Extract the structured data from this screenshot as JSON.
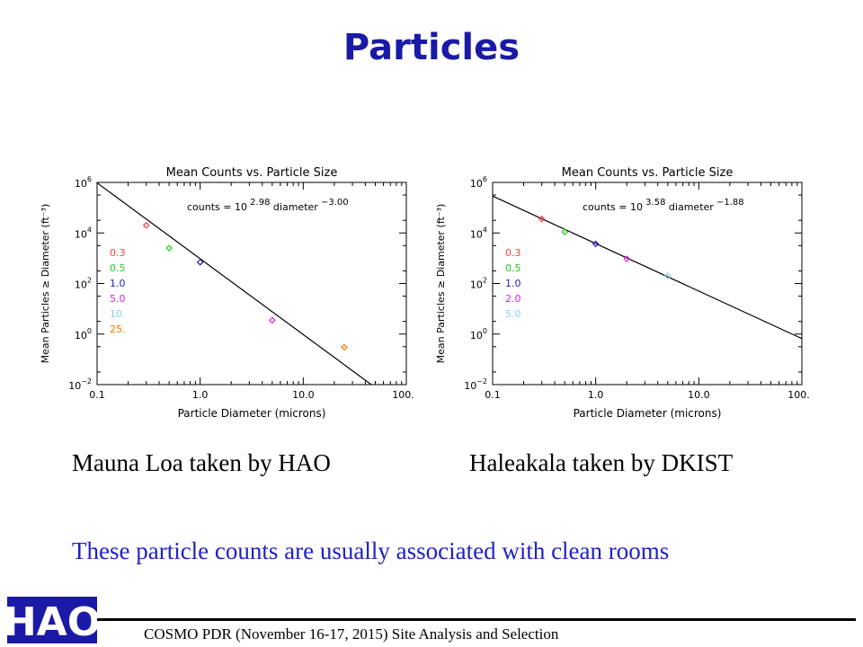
{
  "slide": {
    "title": "Particles",
    "caption_left": "Mauna Loa taken by HAO",
    "caption_right": "Haleakala taken by DKIST",
    "note": "These particle counts are usually associated with clean rooms",
    "footer": "COSMO PDR  (November 16-17, 2015) Site Analysis and Selection",
    "logo_text": "HAO"
  },
  "colors": {
    "title": "#1a1aa6",
    "note": "#1f1fc8",
    "size_0_3": "#ff4040",
    "size_0_5": "#22cc22",
    "size_1_0": "#2020c0",
    "size_5_0": "#e020e0",
    "size_2_0": "#e020e0",
    "size_10": "#88ccff",
    "size_25": "#ff7000",
    "logo_bg": "#1a1aa6",
    "logo_text": "#ffffff"
  },
  "chart_data": [
    {
      "type": "scatter",
      "title": "Mean Counts vs. Particle Size",
      "xlabel": "Particle Diameter (microns)",
      "ylabel": "Mean Particles ≥ Diameter (ft⁻³)",
      "xscale": "log",
      "yscale": "log",
      "xlim": [
        0.1,
        100.0
      ],
      "ylim": [
        0.01,
        1000000
      ],
      "x_ticks": [
        "0.1",
        "1.0",
        "10.0",
        "100.0"
      ],
      "y_ticks": [
        {
          "base": "10",
          "exp": "6"
        },
        {
          "base": "10",
          "exp": "4"
        },
        {
          "base": "10",
          "exp": "2"
        },
        {
          "base": "10",
          "exp": "0"
        },
        {
          "base": "10",
          "exp": "−2"
        }
      ],
      "fit_label": {
        "prefix": "counts = 10",
        "exp": "2.98",
        "mid": "diameter",
        "power": "−3.00"
      },
      "fit": {
        "log_coeff": 2.98,
        "power": -3.0
      },
      "legend_position": "left",
      "series": [
        {
          "name": "0.3",
          "x": 0.3,
          "y": 20000,
          "color_key": "size_0_3"
        },
        {
          "name": "0.5",
          "x": 0.5,
          "y": 2500,
          "color_key": "size_0_5"
        },
        {
          "name": "1.0",
          "x": 1.0,
          "y": 700,
          "color_key": "size_1_0"
        },
        {
          "name": "5.0",
          "x": 5.0,
          "y": 3.5,
          "color_key": "size_5_0"
        },
        {
          "name": "10.",
          "x": 10.0,
          "y": null,
          "color_key": "size_10"
        },
        {
          "name": "25.",
          "x": 25.0,
          "y": 0.3,
          "color_key": "size_25"
        }
      ]
    },
    {
      "type": "scatter",
      "title": "Mean Counts vs. Particle Size",
      "xlabel": "Particle Diameter (microns)",
      "ylabel": "Mean Particles ≥ Diameter (ft⁻³)",
      "xscale": "log",
      "yscale": "log",
      "xlim": [
        0.1,
        100.0
      ],
      "ylim": [
        0.01,
        1000000
      ],
      "x_ticks": [
        "0.1",
        "1.0",
        "10.0",
        "100.0"
      ],
      "y_ticks": [
        {
          "base": "10",
          "exp": "6"
        },
        {
          "base": "10",
          "exp": "4"
        },
        {
          "base": "10",
          "exp": "2"
        },
        {
          "base": "10",
          "exp": "0"
        },
        {
          "base": "10",
          "exp": "−2"
        }
      ],
      "fit_label": {
        "prefix": "counts = 10",
        "exp": "3.58",
        "mid": "diameter",
        "power": "−1.88"
      },
      "fit": {
        "log_coeff": 3.58,
        "power": -1.88
      },
      "legend_position": "left",
      "series": [
        {
          "name": "0.3",
          "x": 0.3,
          "y": 36000,
          "color_key": "size_0_3"
        },
        {
          "name": "0.5",
          "x": 0.5,
          "y": 11000,
          "color_key": "size_0_5"
        },
        {
          "name": "1.0",
          "x": 1.0,
          "y": 3700,
          "color_key": "size_1_0"
        },
        {
          "name": "2.0",
          "x": 2.0,
          "y": 950,
          "color_key": "size_2_0"
        },
        {
          "name": "5.0",
          "x": 5.0,
          "y": 200,
          "color_key": "size_10"
        }
      ]
    }
  ]
}
